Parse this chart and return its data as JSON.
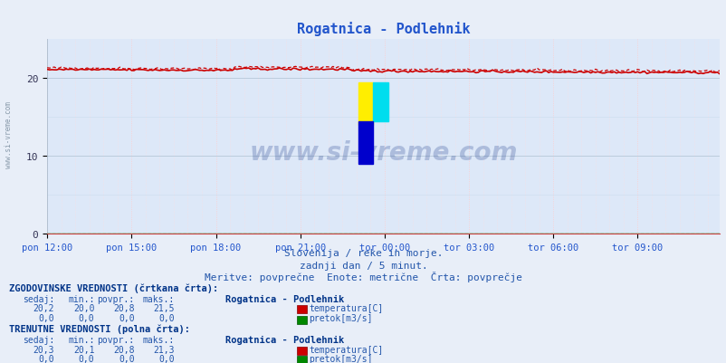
{
  "title": "Rogatnica - Podlehnik",
  "title_color": "#2255cc",
  "bg_color": "#e8e8f0",
  "plot_bg_color": "#dde8f8",
  "grid_color_h": "#c8c8d8",
  "grid_color_v": "#ffbbbb",
  "xlabel_color": "#2255cc",
  "text_color": "#2255aa",
  "bold_color": "#003388",
  "x_labels": [
    "pon 12:00",
    "pon 15:00",
    "pon 18:00",
    "pon 21:00",
    "tor 00:00",
    "tor 03:00",
    "tor 06:00",
    "tor 09:00"
  ],
  "x_ticks": [
    0,
    36,
    72,
    108,
    144,
    180,
    216,
    252
  ],
  "y_ticks": [
    0,
    10,
    20
  ],
  "ylim": [
    0,
    25
  ],
  "xlim": [
    0,
    287
  ],
  "temp_line_color": "#cc0000",
  "flow_color": "#008800",
  "watermark_text": "www.si-vreme.com",
  "watermark_color": "#1a3a8a",
  "watermark_alpha": 0.25,
  "sidebar_text": "www.si-vreme.com",
  "subtitle1": "Slovenija / reke in morje.",
  "subtitle2": "zadnji dan / 5 minut.",
  "subtitle3": "Meritve: povprečne  Enote: metrične  Črta: povprečje",
  "legend_hist_label": "ZGODOVINSKE VREDNOSTI (črtkana črta):",
  "legend_cur_label": "TRENUTNE VREDNOSTI (polna črta):",
  "col_headers": [
    "sedaj:",
    "min.:",
    "povpr.:",
    "maks.:"
  ],
  "hist_temp_vals": [
    "20,2",
    "20,0",
    "20,8",
    "21,5"
  ],
  "hist_flow_vals": [
    "0,0",
    "0,0",
    "0,0",
    "0,0"
  ],
  "cur_temp_vals": [
    "20,3",
    "20,1",
    "20,8",
    "21,3"
  ],
  "cur_flow_vals": [
    "0,0",
    "0,0",
    "0,0",
    "0,0"
  ],
  "station_label": "Rogatnica - Podlehnik",
  "temp_label": "temperatura[C]",
  "flow_label": "pretok[m3/s]",
  "logo_yellow": "#ffee00",
  "logo_cyan": "#00ddee",
  "logo_blue": "#0000cc"
}
